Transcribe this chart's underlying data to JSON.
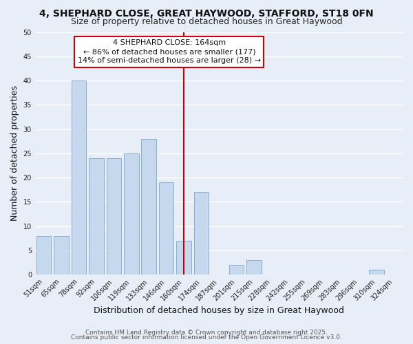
{
  "title_line1": "4, SHEPHARD CLOSE, GREAT HAYWOOD, STAFFORD, ST18 0FN",
  "title_line2": "Size of property relative to detached houses in Great Haywood",
  "xlabel": "Distribution of detached houses by size in Great Haywood",
  "ylabel": "Number of detached properties",
  "categories": [
    "51sqm",
    "65sqm",
    "78sqm",
    "92sqm",
    "106sqm",
    "119sqm",
    "133sqm",
    "146sqm",
    "160sqm",
    "174sqm",
    "187sqm",
    "201sqm",
    "215sqm",
    "228sqm",
    "242sqm",
    "255sqm",
    "269sqm",
    "283sqm",
    "296sqm",
    "310sqm",
    "324sqm"
  ],
  "values": [
    8,
    8,
    40,
    24,
    24,
    25,
    28,
    19,
    7,
    17,
    0,
    2,
    3,
    0,
    0,
    0,
    0,
    0,
    0,
    1,
    0
  ],
  "bar_color": "#c5d8ee",
  "bar_edge_color": "#7ba7cc",
  "highlight_index": 8,
  "highlight_line_color": "#cc0000",
  "ylim": [
    0,
    50
  ],
  "annotation_title": "4 SHEPHARD CLOSE: 164sqm",
  "annotation_line1": "← 86% of detached houses are smaller (177)",
  "annotation_line2": "14% of semi-detached houses are larger (28) →",
  "annotation_box_color": "#ffffff",
  "annotation_border_color": "#cc0000",
  "footer_line1": "Contains HM Land Registry data © Crown copyright and database right 2025.",
  "footer_line2": "Contains public sector information licensed under the Open Government Licence v3.0.",
  "background_color": "#e8eef8",
  "grid_color": "#ffffff",
  "title_fontsize": 10,
  "subtitle_fontsize": 9,
  "axis_label_fontsize": 9,
  "tick_fontsize": 7,
  "footer_fontsize": 6.5,
  "annotation_fontsize": 8
}
